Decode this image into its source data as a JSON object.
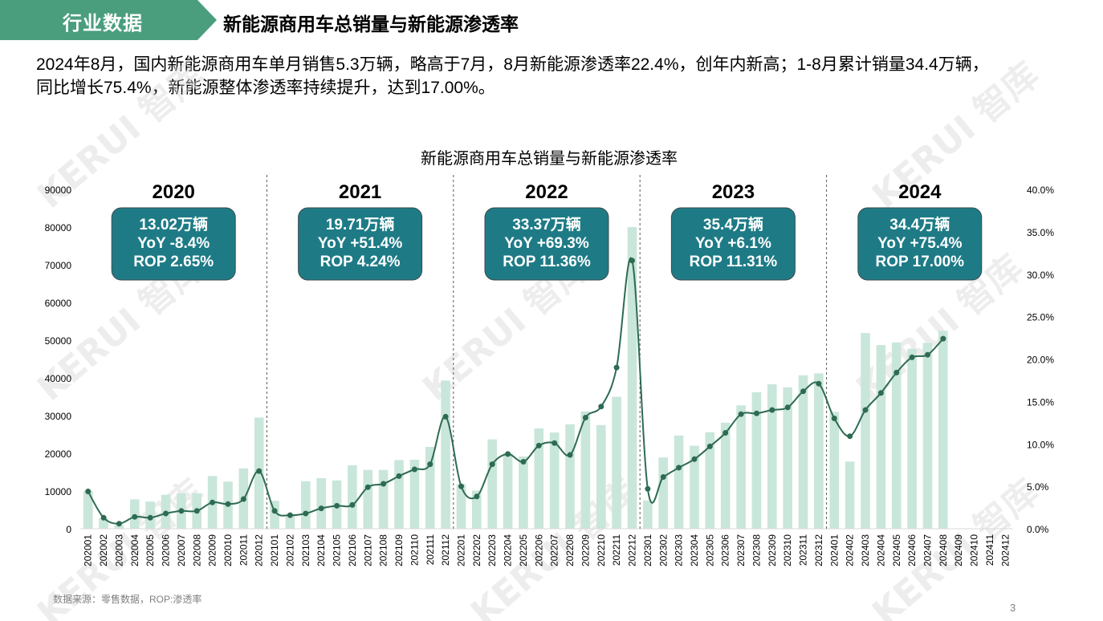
{
  "header": {
    "tag": "行业数据",
    "title": "新能源商用车总销量与新能源渗透率",
    "tag_color": "#4a9e7e"
  },
  "summary": {
    "line1": "2024年8月，国内新能源商用车单月销售5.3万辆，略高于7月，8月新能源渗透率22.4%，创年内新高；1-8月累计销量34.4万辆，",
    "line2": "同比增长75.4%，新能源整体渗透率持续提升，达到17.00%。"
  },
  "footer": {
    "source": "数据来源：零售数据，ROP:渗透率",
    "page": "3"
  },
  "watermark": "KERUI 智库",
  "chart_data": {
    "type": "bar",
    "title": "新能源商用车总销量与新能源渗透率",
    "categories": [
      "202001",
      "202002",
      "202003",
      "202004",
      "202005",
      "202006",
      "202007",
      "202008",
      "202009",
      "202010",
      "202011",
      "202012",
      "202101",
      "202102",
      "202103",
      "202104",
      "202105",
      "202106",
      "202107",
      "202108",
      "202109",
      "202110",
      "202111",
      "202112",
      "202201",
      "202202",
      "202203",
      "202204",
      "202205",
      "202206",
      "202207",
      "202208",
      "202209",
      "202210",
      "202211",
      "202212",
      "202301",
      "202302",
      "202303",
      "202304",
      "202305",
      "202306",
      "202307",
      "202308",
      "202309",
      "202310",
      "202311",
      "202312",
      "202401",
      "202402",
      "202403",
      "202404",
      "202405",
      "202406",
      "202407",
      "202408",
      "202409",
      "202410",
      "202411",
      "202412"
    ],
    "series": [
      {
        "type": "bar",
        "axis": "left",
        "color": "#c9e6da",
        "values": [
          10000,
          2800,
          1000,
          7800,
          7200,
          9000,
          9400,
          9400,
          14000,
          12500,
          16000,
          29500,
          7400,
          3600,
          12600,
          13400,
          12800,
          16800,
          15600,
          15600,
          18200,
          18300,
          21700,
          39300,
          11800,
          10100,
          23700,
          20100,
          19200,
          26600,
          25500,
          27700,
          31100,
          27500,
          35000,
          80000,
          7500,
          18900,
          24700,
          22000,
          25600,
          28100,
          32700,
          36200,
          38300,
          37500,
          40700,
          41200,
          31000,
          17800,
          51900,
          48700,
          49400,
          47700,
          49300,
          52500,
          null,
          null,
          null,
          null
        ]
      },
      {
        "type": "line",
        "axis": "right",
        "color": "#2e6b52",
        "values": [
          4.4,
          1.3,
          0.6,
          1.4,
          1.3,
          1.8,
          2.1,
          2.1,
          3.1,
          2.9,
          3.5,
          6.8,
          2.1,
          1.6,
          1.8,
          2.4,
          2.7,
          2.8,
          4.9,
          5.3,
          6.2,
          7.0,
          7.6,
          13.2,
          5.0,
          3.8,
          7.6,
          8.8,
          7.9,
          9.8,
          10.1,
          8.7,
          13.1,
          14.4,
          19.0,
          31.6,
          4.7,
          6.1,
          7.2,
          8.2,
          9.7,
          11.3,
          13.5,
          13.6,
          14.0,
          14.3,
          16.2,
          17.1,
          13.0,
          10.9,
          14.0,
          16.0,
          18.4,
          20.2,
          20.5,
          22.4,
          null,
          null,
          null,
          null
        ]
      }
    ],
    "y_left": {
      "min": 0,
      "max": 90000,
      "ticks": [
        "0",
        "10000",
        "20000",
        "30000",
        "40000",
        "50000",
        "60000",
        "70000",
        "80000",
        "90000"
      ]
    },
    "y_right": {
      "min": 0,
      "max": 40,
      "ticks": [
        "0.0%",
        "5.0%",
        "10.0%",
        "15.0%",
        "20.0%",
        "25.0%",
        "30.0%",
        "35.0%",
        "40.0%"
      ]
    },
    "year_labels": [
      "2020",
      "2021",
      "2022",
      "2023",
      "2024"
    ],
    "annotations": [
      {
        "sales": "13.02万辆",
        "yoy": "YoY -8.4%",
        "rop": "ROP 2.65%"
      },
      {
        "sales": "19.71万辆",
        "yoy": "YoY +51.4%",
        "rop": "ROP 4.24%"
      },
      {
        "sales": "33.37万辆",
        "yoy": "YoY +69.3%",
        "rop": "ROP 11.36%"
      },
      {
        "sales": "35.4万辆",
        "yoy": "YoY +6.1%",
        "rop": "ROP 11.31%"
      },
      {
        "sales": "34.4万辆",
        "yoy": "YoY +75.4%",
        "rop": "ROP 17.00%"
      }
    ],
    "annotation_box_color": "#1e7b86",
    "grid": false,
    "legend": "none"
  }
}
